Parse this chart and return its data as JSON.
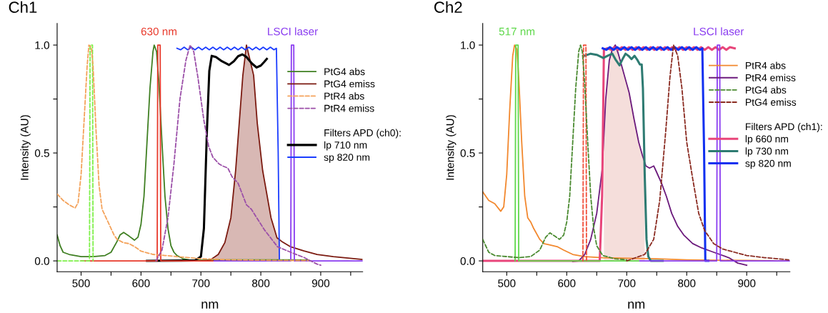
{
  "chart_data": [
    {
      "type": "line",
      "title": "Ch1",
      "xlabel": "nm",
      "ylabel": "Intensity (AU)",
      "xlim": [
        460,
        970
      ],
      "ylim": [
        -0.05,
        1.1
      ],
      "annotations": [
        {
          "text": "630 nm",
          "x": 630,
          "y": 1
        },
        {
          "text": "LSCI laser",
          "x": 853,
          "y": 1
        }
      ],
      "xticks": [
        500,
        {
          "value": 550,
          "label": null
        },
        600,
        {
          "value": 650,
          "label": null
        },
        700,
        {
          "value": 750,
          "label": null
        },
        800,
        {
          "value": 850,
          "label": null
        },
        900,
        {
          "value": 950,
          "label": null
        }
      ],
      "yticks": [
        {
          "value": 0,
          "label": "0.0"
        },
        {
          "value": 0.25,
          "label": null
        },
        {
          "value": 0.5,
          "label": "0.5"
        },
        {
          "value": 0.75,
          "label": null
        },
        {
          "value": 1,
          "label": "1.0"
        }
      ],
      "grid": false,
      "legend": "right",
      "legend_title": "Filters APD (ch0):",
      "marker": "none",
      "series": [
        {
          "type": "area",
          "color": "#d8b8b4",
          "x": [
            720,
            729,
            740,
            750,
            758,
            764,
            770,
            776,
            782,
            788,
            794,
            803,
            817,
            827,
            832
          ],
          "values": [
            0.004,
            0.03,
            0.085,
            0.2,
            0.42,
            0.64,
            0.86,
            1.0,
            0.93,
            0.86,
            0.64,
            0.42,
            0.2,
            0.107,
            0.095
          ]
        },
        {
          "name": "PtG4 abs",
          "line_style": "solid",
          "color": "#3f7f22",
          "x": [
            460,
            465,
            470,
            480,
            490,
            500,
            520,
            540,
            550,
            560,
            565,
            571,
            580,
            589,
            595,
            600,
            605,
            610,
            615,
            620,
            622,
            626,
            630,
            635,
            640,
            645,
            650,
            655,
            660,
            670,
            680,
            700,
            750,
            800,
            850,
            880
          ],
          "values": [
            0.12,
            0.07,
            0.04,
            0.03,
            0.025,
            0.02,
            0.02,
            0.025,
            0.04,
            0.09,
            0.12,
            0.132,
            0.115,
            0.096,
            0.11,
            0.17,
            0.3,
            0.55,
            0.8,
            0.97,
            1.0,
            0.97,
            0.82,
            0.55,
            0.3,
            0.15,
            0.07,
            0.04,
            0.025,
            0.01,
            0.005,
            0.003,
            0.005,
            0.005,
            0.005,
            0.004
          ]
        },
        {
          "name": "PtG4 emiss",
          "line_style": "solid",
          "color": "#7b1a10",
          "x": [
            700,
            715,
            729,
            740,
            750,
            758,
            764,
            770,
            776,
            782,
            788,
            794,
            803,
            817,
            827,
            835,
            850,
            872,
            894,
            921,
            969
          ],
          "values": [
            0,
            0.003,
            0.03,
            0.085,
            0.2,
            0.42,
            0.64,
            0.86,
            1.0,
            0.93,
            0.86,
            0.64,
            0.42,
            0.2,
            0.107,
            0.09,
            0.065,
            0.046,
            0.03,
            0.02,
            0.007
          ]
        },
        {
          "name": "PtR4 abs",
          "line_style": "dashed",
          "color": "#f4a25a",
          "x": [
            460,
            470,
            480,
            490,
            495,
            500,
            505,
            510,
            513,
            517,
            520,
            525,
            530,
            535,
            545,
            555,
            560,
            570,
            580,
            590,
            600,
            620,
            640,
            660,
            700,
            750,
            800,
            850,
            880
          ],
          "values": [
            0.31,
            0.28,
            0.26,
            0.245,
            0.27,
            0.4,
            0.65,
            0.9,
            1.0,
            0.99,
            0.9,
            0.6,
            0.35,
            0.24,
            0.18,
            0.12,
            0.1,
            0.085,
            0.08,
            0.065,
            0.045,
            0.03,
            0.025,
            0.02,
            0.01,
            0.005,
            0.003,
            0.002,
            0.002
          ]
        },
        {
          "name": "PtR4 emiss",
          "line_style": "dashed",
          "color": "#9b4fa8",
          "x": [
            625,
            635,
            645,
            655,
            665,
            675,
            682,
            688,
            695,
            705,
            713,
            720,
            730,
            736,
            745,
            752,
            762,
            776,
            784,
            806,
            828,
            850,
            872,
            894,
            900
          ],
          "values": [
            0,
            0.05,
            0.2,
            0.45,
            0.75,
            0.93,
            1.0,
            0.97,
            0.85,
            0.65,
            0.53,
            0.48,
            0.45,
            0.44,
            0.43,
            0.39,
            0.36,
            0.26,
            0.24,
            0.144,
            0.065,
            0.04,
            0.016,
            -0.015,
            -0.02
          ]
        },
        {
          "name": "lp 710 nm",
          "line_style": "solid",
          "color": "#000000",
          "x": [
            610,
            690,
            700,
            705,
            710,
            714,
            718,
            725,
            735,
            747,
            755,
            762,
            769,
            776,
            785,
            793,
            800,
            805,
            810
          ],
          "values": [
            0,
            0.002,
            0.02,
            0.15,
            0.6,
            0.88,
            0.95,
            0.945,
            0.925,
            0.908,
            0.925,
            0.948,
            0.957,
            0.945,
            0.915,
            0.896,
            0.905,
            0.92,
            0.936
          ]
        },
        {
          "name": "sp 820 nm",
          "line_style": "solid",
          "color": "#1a3cff",
          "x": [
            660,
            666,
            672,
            678,
            684,
            690,
            696,
            702,
            708,
            714,
            720,
            726,
            732,
            738,
            744,
            750,
            756,
            762,
            768,
            774,
            780,
            786,
            792,
            798,
            804,
            810,
            816,
            822,
            826,
            829,
            831,
            836
          ],
          "values": [
            0.985,
            0.978,
            0.99,
            0.978,
            0.99,
            0.978,
            0.99,
            0.978,
            0.99,
            0.978,
            0.99,
            0.978,
            0.99,
            0.978,
            0.99,
            0.978,
            0.99,
            0.978,
            0.99,
            0.978,
            0.99,
            0.978,
            0.99,
            0.978,
            0.99,
            0.978,
            0.99,
            0.978,
            0.985,
            0.5,
            0.0,
            0.0
          ]
        },
        {
          "line_style": "solid",
          "color": "#e8392b",
          "x": [
            500,
            627,
            628,
            632,
            633,
            722
          ],
          "values": [
            0,
            0,
            1,
            1,
            0,
            0
          ]
        },
        {
          "line_style": "dashed",
          "color": "#7ff04a",
          "x": [
            460,
            514,
            515,
            519,
            520
          ],
          "values": [
            0,
            0,
            1,
            1,
            0
          ]
        },
        {
          "line_style": "solid",
          "color": "#8a3cf0",
          "x": [
            722,
            850,
            851,
            855,
            856,
            970
          ],
          "values": [
            0,
            0,
            1,
            1,
            0,
            0
          ]
        }
      ]
    },
    {
      "type": "line",
      "title": "Ch2",
      "xlabel": "nm",
      "ylabel": "Intensity (AU)",
      "xlim": [
        460,
        972
      ],
      "ylim": [
        -0.05,
        1.1
      ],
      "annotations": [
        {
          "text": "517 nm",
          "x": 517,
          "y": 1
        },
        {
          "text": "LSCI laser",
          "x": 853,
          "y": 1
        }
      ],
      "xticks": [
        500,
        {
          "value": 550,
          "label": null
        },
        600,
        {
          "value": 650,
          "label": null
        },
        700,
        {
          "value": 750,
          "label": null
        },
        800,
        {
          "value": 850,
          "label": null
        },
        900,
        {
          "value": 950,
          "label": null
        }
      ],
      "yticks": [
        {
          "value": 0,
          "label": "0.0"
        },
        {
          "value": 0.25,
          "label": null
        },
        {
          "value": 0.5,
          "label": "0.5"
        },
        {
          "value": 0.75,
          "label": null
        },
        {
          "value": 1,
          "label": "1.0"
        }
      ],
      "grid": false,
      "legend": "right",
      "legend_title": "Filters APD (ch1):",
      "marker": "none",
      "series": [
        {
          "type": "area",
          "color": "#f5dedb",
          "x": [
            662,
            665,
            671,
            676,
            681,
            686,
            692,
            698,
            704,
            712,
            720,
            726,
            730
          ],
          "values": [
            0.6,
            0.75,
            0.93,
            0.98,
            1.0,
            0.96,
            0.9,
            0.84,
            0.78,
            0.66,
            0.55,
            0.49,
            0.46
          ]
        },
        {
          "name": "PtR4 abs",
          "line_style": "solid",
          "color": "#f2882e",
          "x": [
            460,
            470,
            480,
            490,
            495,
            500,
            505,
            510,
            513,
            517,
            520,
            525,
            530,
            535,
            540,
            545,
            555,
            562,
            570,
            585,
            595,
            610,
            630,
            660,
            700,
            750,
            800,
            850,
            900,
            970
          ],
          "values": [
            0.32,
            0.28,
            0.265,
            0.23,
            0.25,
            0.4,
            0.7,
            0.95,
            1.0,
            0.98,
            0.85,
            0.55,
            0.3,
            0.2,
            0.18,
            0.15,
            0.1,
            0.08,
            0.075,
            0.065,
            0.05,
            0.03,
            0.02,
            0.015,
            0.012,
            0.01,
            0.005,
            0.003,
            0.002,
            0.0
          ]
        },
        {
          "name": "PtR4 emiss",
          "line_style": "solid",
          "color": "#6b1a7c",
          "x": [
            610,
            620,
            630,
            640,
            650,
            659,
            665,
            671,
            676,
            681,
            686,
            692,
            698,
            704,
            712,
            720,
            726,
            732,
            738,
            745,
            750,
            758,
            766,
            775,
            785,
            795,
            810,
            825,
            840,
            855,
            870,
            885,
            900
          ],
          "values": [
            -0.003,
            0.0,
            0.03,
            0.1,
            0.22,
            0.42,
            0.75,
            0.93,
            0.98,
            1.0,
            0.96,
            0.9,
            0.84,
            0.78,
            0.66,
            0.55,
            0.49,
            0.44,
            0.43,
            0.44,
            0.41,
            0.36,
            0.3,
            0.22,
            0.16,
            0.12,
            0.08,
            0.06,
            0.045,
            0.03,
            0.015,
            -0.01,
            -0.02
          ]
        },
        {
          "name": "PtG4 abs",
          "line_style": "dashed",
          "color": "#4a8a30",
          "x": [
            460,
            470,
            480,
            500,
            520,
            540,
            555,
            565,
            572,
            580,
            588,
            595,
            600,
            605,
            610,
            615,
            620,
            623,
            626,
            630,
            635,
            640,
            645,
            650,
            660,
            680,
            700
          ],
          "values": [
            0.1,
            0.04,
            0.025,
            0.02,
            0.015,
            0.02,
            0.05,
            0.11,
            0.13,
            0.115,
            0.1,
            0.12,
            0.18,
            0.3,
            0.55,
            0.8,
            0.97,
            1.0,
            0.97,
            0.82,
            0.55,
            0.3,
            0.15,
            0.07,
            0.025,
            0.01,
            0.005
          ]
        },
        {
          "name": "PtG4 emiss",
          "line_style": "dashed",
          "color": "#8a2a20",
          "x": [
            700,
            730,
            745,
            755,
            765,
            772,
            778,
            785,
            792,
            800,
            810,
            820,
            830,
            845,
            860,
            880,
            900,
            930,
            970
          ],
          "values": [
            0,
            0.03,
            0.1,
            0.28,
            0.6,
            0.85,
            1.0,
            0.95,
            0.8,
            0.55,
            0.38,
            0.22,
            0.14,
            0.08,
            0.055,
            0.04,
            0.025,
            0.015,
            0.005
          ]
        },
        {
          "name": "lp 660 nm",
          "line_style": "solid",
          "color": "#e8457a",
          "x": [
            460,
            655,
            659,
            662,
            668,
            674,
            680,
            686,
            692,
            698,
            704,
            710,
            716,
            722,
            728,
            734,
            740,
            746,
            752,
            758,
            764,
            770,
            776,
            782,
            788,
            794,
            800,
            806,
            812,
            818,
            824,
            830,
            836,
            842,
            848,
            854,
            860,
            866,
            872,
            880
          ],
          "values": [
            0,
            0,
            0.3,
            0.98,
            0.985,
            0.978,
            0.99,
            0.978,
            0.99,
            0.978,
            0.99,
            0.978,
            0.99,
            0.978,
            0.99,
            0.978,
            0.99,
            0.978,
            0.99,
            0.978,
            0.99,
            0.978,
            0.99,
            0.978,
            0.99,
            0.978,
            0.99,
            0.978,
            0.99,
            0.978,
            0.99,
            0.978,
            0.99,
            0.978,
            0.99,
            0.978,
            0.99,
            0.978,
            0.99,
            0.985
          ]
        },
        {
          "name": "lp 730 nm",
          "line_style": "solid",
          "color": "#2e7b72",
          "x": [
            629,
            640,
            650,
            661,
            668,
            676,
            682,
            688,
            694,
            698,
            703,
            708,
            713,
            718,
            722,
            725,
            727,
            730,
            733,
            736,
            740,
            760
          ],
          "values": [
            0.95,
            0.96,
            0.955,
            0.94,
            0.95,
            0.96,
            0.93,
            0.906,
            0.94,
            0.96,
            0.95,
            0.935,
            0.95,
            0.93,
            0.91,
            0.91,
            0.8,
            0.4,
            0.1,
            0.02,
            0.0,
            0.0
          ]
        },
        {
          "name": "sp 820 nm",
          "line_style": "solid",
          "color": "#1030f0",
          "x": [
            660,
            666,
            672,
            678,
            684,
            690,
            696,
            702,
            708,
            714,
            720,
            726,
            732,
            738,
            744,
            750,
            756,
            762,
            768,
            774,
            780,
            786,
            792,
            798,
            804,
            810,
            816,
            822,
            826,
            829,
            831,
            836
          ],
          "values": [
            0.985,
            0.978,
            0.99,
            0.978,
            0.99,
            0.978,
            0.99,
            0.978,
            0.99,
            0.978,
            0.99,
            0.978,
            0.99,
            0.978,
            0.99,
            0.978,
            0.99,
            0.978,
            0.99,
            0.978,
            0.99,
            0.978,
            0.99,
            0.978,
            0.99,
            0.978,
            0.99,
            0.978,
            0.985,
            0.5,
            0.0,
            0.0
          ]
        },
        {
          "line_style": "solid",
          "color": "#5ed84a",
          "x": [
            514,
            515,
            519,
            520,
            720
          ],
          "values": [
            0,
            1,
            1,
            0,
            0
          ]
        },
        {
          "line_style": "dashed",
          "color": "#f0503c",
          "x": [
            627,
            628,
            632,
            633
          ],
          "values": [
            0,
            1,
            1,
            0
          ]
        },
        {
          "line_style": "solid",
          "color": "#8a3cf0",
          "x": [
            722,
            850,
            851,
            855,
            856,
            972
          ],
          "values": [
            0,
            0,
            1,
            1,
            0,
            0
          ]
        }
      ]
    }
  ]
}
